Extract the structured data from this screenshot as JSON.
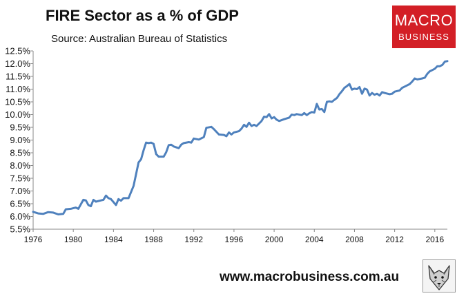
{
  "header": {
    "title": "FIRE Sector as a % of GDP",
    "subtitle": "Source: Australian Bureau of Statistics"
  },
  "logo": {
    "line1": "MACRO",
    "line2": "BUSINESS",
    "color": "#d31f26"
  },
  "footer": {
    "url": "www.macrobusiness.com.au"
  },
  "chart_data": {
    "type": "line",
    "title": "FIRE Sector as a % of GDP",
    "xlabel": "",
    "ylabel": "",
    "xlim": [
      1976,
      2017.25
    ],
    "ylim": [
      5.5,
      12.5
    ],
    "x_ticks": [
      1976,
      1980,
      1984,
      1988,
      1992,
      1996,
      2000,
      2004,
      2008,
      2012,
      2016
    ],
    "x_tick_labels": [
      "1976",
      "1980",
      "1984",
      "1988",
      "1992",
      "1996",
      "2000",
      "2004",
      "2008",
      "2012",
      "2016"
    ],
    "y_ticks": [
      5.5,
      6.0,
      6.5,
      7.0,
      7.5,
      8.0,
      8.5,
      9.0,
      9.5,
      10.0,
      10.5,
      11.0,
      11.5,
      12.0,
      12.5
    ],
    "y_tick_labels": [
      "5.5%",
      "6.0%",
      "6.5%",
      "7.0%",
      "7.5%",
      "8.0%",
      "8.5%",
      "9.0%",
      "9.5%",
      "10.0%",
      "10.5%",
      "11.0%",
      "11.5%",
      "12.0%",
      "12.5%"
    ],
    "grid": false,
    "series": [
      {
        "name": "FIRE Sector share of GDP",
        "color": "#4f81bd",
        "points": [
          [
            1976.0,
            6.18
          ],
          [
            1976.5,
            6.12
          ],
          [
            1977.0,
            6.1
          ],
          [
            1977.5,
            6.17
          ],
          [
            1978.0,
            6.15
          ],
          [
            1978.5,
            6.08
          ],
          [
            1979.0,
            6.1
          ],
          [
            1979.25,
            6.28
          ],
          [
            1979.75,
            6.3
          ],
          [
            1980.25,
            6.35
          ],
          [
            1980.5,
            6.3
          ],
          [
            1981.0,
            6.65
          ],
          [
            1981.25,
            6.63
          ],
          [
            1981.5,
            6.45
          ],
          [
            1981.75,
            6.4
          ],
          [
            1982.0,
            6.65
          ],
          [
            1982.25,
            6.58
          ],
          [
            1982.75,
            6.63
          ],
          [
            1983.0,
            6.65
          ],
          [
            1983.25,
            6.82
          ],
          [
            1983.5,
            6.72
          ],
          [
            1983.75,
            6.68
          ],
          [
            1984.25,
            6.45
          ],
          [
            1984.5,
            6.68
          ],
          [
            1984.75,
            6.62
          ],
          [
            1985.0,
            6.72
          ],
          [
            1985.5,
            6.72
          ],
          [
            1986.0,
            7.2
          ],
          [
            1986.5,
            8.12
          ],
          [
            1986.75,
            8.25
          ],
          [
            1987.0,
            8.6
          ],
          [
            1987.25,
            8.9
          ],
          [
            1987.5,
            8.88
          ],
          [
            1987.75,
            8.9
          ],
          [
            1988.0,
            8.85
          ],
          [
            1988.25,
            8.45
          ],
          [
            1988.5,
            8.35
          ],
          [
            1989.0,
            8.35
          ],
          [
            1989.25,
            8.52
          ],
          [
            1989.5,
            8.8
          ],
          [
            1989.75,
            8.82
          ],
          [
            1990.0,
            8.75
          ],
          [
            1990.5,
            8.68
          ],
          [
            1990.75,
            8.82
          ],
          [
            1991.0,
            8.88
          ],
          [
            1991.5,
            8.92
          ],
          [
            1991.75,
            8.9
          ],
          [
            1992.0,
            9.06
          ],
          [
            1992.5,
            9.02
          ],
          [
            1993.0,
            9.12
          ],
          [
            1993.25,
            9.48
          ],
          [
            1993.75,
            9.52
          ],
          [
            1994.0,
            9.43
          ],
          [
            1994.5,
            9.22
          ],
          [
            1995.0,
            9.2
          ],
          [
            1995.25,
            9.15
          ],
          [
            1995.5,
            9.3
          ],
          [
            1995.75,
            9.22
          ],
          [
            1996.0,
            9.3
          ],
          [
            1996.5,
            9.35
          ],
          [
            1996.75,
            9.45
          ],
          [
            1997.0,
            9.6
          ],
          [
            1997.25,
            9.52
          ],
          [
            1997.5,
            9.68
          ],
          [
            1997.75,
            9.55
          ],
          [
            1998.0,
            9.6
          ],
          [
            1998.25,
            9.55
          ],
          [
            1998.5,
            9.65
          ],
          [
            1998.75,
            9.75
          ],
          [
            1999.0,
            9.92
          ],
          [
            1999.25,
            9.9
          ],
          [
            1999.5,
            10.02
          ],
          [
            1999.75,
            9.85
          ],
          [
            2000.0,
            9.9
          ],
          [
            2000.25,
            9.8
          ],
          [
            2000.5,
            9.75
          ],
          [
            2001.0,
            9.82
          ],
          [
            2001.5,
            9.88
          ],
          [
            2001.75,
            10.0
          ],
          [
            2002.0,
            9.98
          ],
          [
            2002.25,
            10.02
          ],
          [
            2002.75,
            9.98
          ],
          [
            2003.0,
            10.06
          ],
          [
            2003.25,
            9.98
          ],
          [
            2003.5,
            10.05
          ],
          [
            2003.75,
            10.1
          ],
          [
            2004.0,
            10.08
          ],
          [
            2004.25,
            10.42
          ],
          [
            2004.5,
            10.2
          ],
          [
            2004.75,
            10.22
          ],
          [
            2005.0,
            10.1
          ],
          [
            2005.25,
            10.5
          ],
          [
            2005.5,
            10.52
          ],
          [
            2005.75,
            10.5
          ],
          [
            2006.0,
            10.58
          ],
          [
            2006.25,
            10.65
          ],
          [
            2006.5,
            10.8
          ],
          [
            2006.75,
            10.92
          ],
          [
            2007.0,
            11.05
          ],
          [
            2007.25,
            11.12
          ],
          [
            2007.5,
            11.2
          ],
          [
            2007.75,
            10.98
          ],
          [
            2008.0,
            11.02
          ],
          [
            2008.25,
            11.0
          ],
          [
            2008.5,
            11.08
          ],
          [
            2008.75,
            10.82
          ],
          [
            2009.0,
            11.02
          ],
          [
            2009.25,
            10.98
          ],
          [
            2009.5,
            10.75
          ],
          [
            2009.75,
            10.85
          ],
          [
            2010.0,
            10.78
          ],
          [
            2010.25,
            10.82
          ],
          [
            2010.5,
            10.75
          ],
          [
            2010.75,
            10.88
          ],
          [
            2011.0,
            10.85
          ],
          [
            2011.5,
            10.8
          ],
          [
            2011.75,
            10.82
          ],
          [
            2012.0,
            10.9
          ],
          [
            2012.5,
            10.95
          ],
          [
            2012.75,
            11.05
          ],
          [
            2013.0,
            11.1
          ],
          [
            2013.5,
            11.2
          ],
          [
            2013.75,
            11.3
          ],
          [
            2014.0,
            11.42
          ],
          [
            2014.25,
            11.38
          ],
          [
            2014.75,
            11.42
          ],
          [
            2015.0,
            11.45
          ],
          [
            2015.25,
            11.6
          ],
          [
            2015.5,
            11.7
          ],
          [
            2015.75,
            11.75
          ],
          [
            2016.0,
            11.8
          ],
          [
            2016.25,
            11.9
          ],
          [
            2016.5,
            11.9
          ],
          [
            2016.75,
            11.95
          ],
          [
            2017.0,
            12.08
          ],
          [
            2017.25,
            12.1
          ]
        ]
      }
    ]
  }
}
